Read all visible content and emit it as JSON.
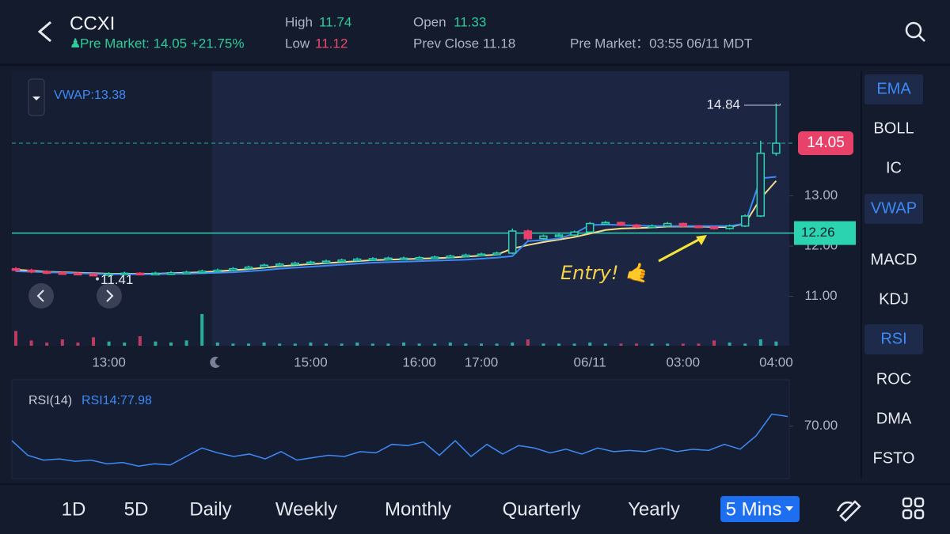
{
  "header": {
    "ticker": "CCXI",
    "pre_market": "Pre Market: 14.05 +21.75%",
    "high_label": "High",
    "high": "11.74",
    "low_label": "Low",
    "low": "11.12",
    "open_label": "Open",
    "open": "11.33",
    "prev_close": "Prev Close 11.18",
    "pre_market_time": "Pre Market：03:55 06/11 MDT"
  },
  "indicators": [
    {
      "label": "EMA",
      "active": true
    },
    {
      "label": "BOLL",
      "active": false
    },
    {
      "label": "IC",
      "active": false
    },
    {
      "label": "VWAP",
      "active": true
    },
    {
      "label": "MACD",
      "active": false
    },
    {
      "label": "KDJ",
      "active": false
    },
    {
      "label": "RSI",
      "active": true
    },
    {
      "label": "ROC",
      "active": false
    },
    {
      "label": "DMA",
      "active": false
    },
    {
      "label": "FSTO",
      "active": false
    }
  ],
  "tabs": [
    {
      "label": "1D",
      "active": false
    },
    {
      "label": "5D",
      "active": false
    },
    {
      "label": "Daily",
      "active": false
    },
    {
      "label": "Weekly",
      "active": false
    },
    {
      "label": "Monthly",
      "active": false
    },
    {
      "label": "Quarterly",
      "active": false
    },
    {
      "label": "Yearly",
      "active": false
    },
    {
      "label": "5 Mins",
      "active": true
    }
  ],
  "chart_data": [
    {
      "type": "candlestick",
      "indicator_label": "VWAP:13.38",
      "categories": [
        null,
        null,
        null,
        null,
        null,
        null,
        "13:00",
        null,
        null,
        null,
        null,
        null,
        null,
        null,
        null,
        null,
        null,
        null,
        null,
        "15:00",
        null,
        null,
        null,
        null,
        null,
        null,
        "16:00",
        null,
        null,
        null,
        "17:00",
        null,
        null,
        null,
        null,
        null,
        null,
        "06/11",
        null,
        null,
        null,
        null,
        null,
        "03:00",
        null,
        null,
        null,
        null,
        null,
        "04:00"
      ],
      "open": [
        11.55,
        11.52,
        11.49,
        11.47,
        11.46,
        11.44,
        11.43,
        11.45,
        11.46,
        11.45,
        11.46,
        11.47,
        11.48,
        11.5,
        11.52,
        11.55,
        11.58,
        11.62,
        11.64,
        11.66,
        11.68,
        11.7,
        11.72,
        11.74,
        11.75,
        11.76,
        11.76,
        11.77,
        11.78,
        11.8,
        11.82,
        11.84,
        11.86,
        12.3,
        12.15,
        12.2,
        12.22,
        12.28,
        12.45,
        12.47,
        12.42,
        12.38,
        12.4,
        12.45,
        12.4,
        12.38,
        12.35,
        12.4,
        12.6,
        13.85
      ],
      "high": [
        11.58,
        11.55,
        11.52,
        11.5,
        11.48,
        11.46,
        11.48,
        11.49,
        11.48,
        11.49,
        11.5,
        11.51,
        11.53,
        11.55,
        11.58,
        11.61,
        11.65,
        11.67,
        11.69,
        11.71,
        11.73,
        11.75,
        11.77,
        11.78,
        11.79,
        11.79,
        11.8,
        11.81,
        11.83,
        11.85,
        11.87,
        11.89,
        12.35,
        12.33,
        12.23,
        12.25,
        12.31,
        12.48,
        12.5,
        12.49,
        12.44,
        12.43,
        12.48,
        12.47,
        12.42,
        12.4,
        12.43,
        12.63,
        14.1,
        14.84
      ],
      "low": [
        11.49,
        11.46,
        11.44,
        11.43,
        11.42,
        11.41,
        11.42,
        11.43,
        11.43,
        11.43,
        11.44,
        11.45,
        11.46,
        11.48,
        11.5,
        11.53,
        11.56,
        11.6,
        11.62,
        11.64,
        11.66,
        11.68,
        11.7,
        11.72,
        11.73,
        11.74,
        11.74,
        11.75,
        11.76,
        11.78,
        11.8,
        11.82,
        11.84,
        12.12,
        12.13,
        12.18,
        12.2,
        12.26,
        12.43,
        12.4,
        12.36,
        12.36,
        12.38,
        12.38,
        12.36,
        12.33,
        12.33,
        12.38,
        12.58,
        13.8
      ],
      "close": [
        11.52,
        11.49,
        11.47,
        11.46,
        11.44,
        11.43,
        11.45,
        11.46,
        11.45,
        11.46,
        11.47,
        11.48,
        11.5,
        11.52,
        11.55,
        11.58,
        11.62,
        11.64,
        11.66,
        11.68,
        11.7,
        11.72,
        11.74,
        11.75,
        11.76,
        11.76,
        11.77,
        11.78,
        11.8,
        11.82,
        11.84,
        11.86,
        12.3,
        12.15,
        12.2,
        12.22,
        12.28,
        12.45,
        12.47,
        12.42,
        12.38,
        12.4,
        12.45,
        12.4,
        12.38,
        12.35,
        12.4,
        12.6,
        13.85,
        14.05
      ],
      "volume": [
        14,
        5,
        3,
        6,
        3,
        8,
        4,
        3,
        9,
        4,
        3,
        5,
        30,
        3,
        2,
        2,
        3,
        2,
        2,
        3,
        2,
        2,
        3,
        2,
        2,
        3,
        2,
        2,
        3,
        2,
        2,
        2,
        3,
        6,
        2,
        2,
        2,
        3,
        2,
        2,
        2,
        2,
        2,
        2,
        2,
        5,
        3,
        2,
        6,
        4
      ],
      "lines": [
        {
          "color": "#f2df8c",
          "values": [
            11.53,
            11.51,
            11.49,
            11.48,
            11.47,
            11.46,
            11.45,
            11.45,
            11.45,
            11.45,
            11.46,
            11.47,
            11.48,
            11.5,
            11.52,
            11.54,
            11.57,
            11.6,
            11.62,
            11.64,
            11.66,
            11.68,
            11.7,
            11.72,
            11.73,
            11.74,
            11.75,
            11.76,
            11.77,
            11.79,
            11.81,
            11.83,
            11.95,
            12.02,
            12.08,
            12.13,
            12.18,
            12.25,
            12.32,
            12.35,
            12.36,
            12.37,
            12.39,
            12.39,
            12.39,
            12.38,
            12.38,
            12.45,
            12.95,
            13.3
          ]
        },
        {
          "color": "#3d8af7",
          "values": [
            11.5,
            11.49,
            11.48,
            11.47,
            11.46,
            11.45,
            11.44,
            11.44,
            11.44,
            11.44,
            11.45,
            11.45,
            11.46,
            11.47,
            11.48,
            11.5,
            11.52,
            11.55,
            11.57,
            11.59,
            11.61,
            11.63,
            11.65,
            11.67,
            11.68,
            11.69,
            11.7,
            11.71,
            11.72,
            11.73,
            11.75,
            11.77,
            11.8,
            12.1,
            12.12,
            12.15,
            12.25,
            12.42,
            12.43,
            12.42,
            12.41,
            12.4,
            12.4,
            12.4,
            12.4,
            12.4,
            12.4,
            12.45,
            13.35,
            13.38
          ]
        }
      ],
      "level": 12.26,
      "annotation": "Entry! 🤙",
      "ylim": [
        10.0,
        15.5
      ],
      "yticks": [
        {
          "value": 11,
          "label": "11.00"
        },
        {
          "value": 12,
          "label": "12.00"
        },
        {
          "value": 13,
          "label": "13.00"
        }
      ]
    },
    {
      "type": "line",
      "title": "RSI(14)",
      "label": "RSI14:77.98",
      "color": "#3d8af7",
      "values": [
        58,
        46,
        42,
        43,
        41,
        42,
        39,
        40,
        37,
        39,
        38,
        45,
        52,
        48,
        45,
        47,
        43,
        49,
        42,
        44,
        46,
        45,
        49,
        48,
        55,
        54,
        57,
        46,
        58,
        45,
        55,
        47,
        54,
        52,
        48,
        51,
        47,
        52,
        49,
        50,
        49,
        52,
        49,
        51,
        50,
        55,
        51,
        62,
        80,
        77.98
      ],
      "ylim": [
        30,
        92
      ],
      "yticks": [
        {
          "value": 70,
          "label": "70.00"
        }
      ]
    }
  ]
}
